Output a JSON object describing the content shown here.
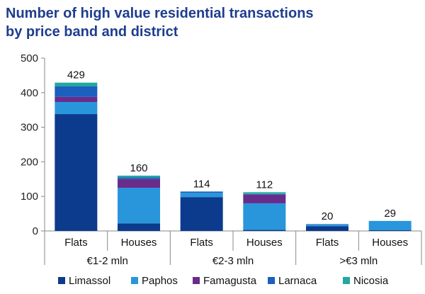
{
  "chart_data": {
    "type": "stacked-bar",
    "title": [
      "Number of high value residential transactions",
      "by price band and district"
    ],
    "xlabel": "",
    "ylabel": "",
    "ylim": [
      0,
      500
    ],
    "yticks": [
      "0",
      "100",
      "200",
      "300",
      "400",
      "500"
    ],
    "legend_position": "bottom",
    "groups": [
      "€1-2 mln",
      "€2-3 mln",
      ">€3 mln"
    ],
    "categories": [
      "Flats",
      "Houses",
      "Flats",
      "Houses",
      "Flats",
      "Houses"
    ],
    "totals": [
      "429",
      "160",
      "114",
      "112",
      "20",
      "29"
    ],
    "series": [
      {
        "name": "Limassol",
        "color": "#0c3a8c",
        "values": [
          338,
          22,
          98,
          3,
          14,
          2
        ]
      },
      {
        "name": "Paphos",
        "color": "#2996dc",
        "values": [
          35,
          103,
          12,
          77,
          5,
          27
        ]
      },
      {
        "name": "Famagusta",
        "color": "#6a2c8b",
        "values": [
          15,
          25,
          0,
          25,
          0,
          0
        ]
      },
      {
        "name": "Larnaca",
        "color": "#1b5fbf",
        "values": [
          30,
          5,
          4,
          2,
          1,
          0
        ]
      },
      {
        "name": "Nicosia",
        "color": "#23a8a0",
        "values": [
          11,
          5,
          0,
          5,
          0,
          0
        ]
      }
    ]
  }
}
